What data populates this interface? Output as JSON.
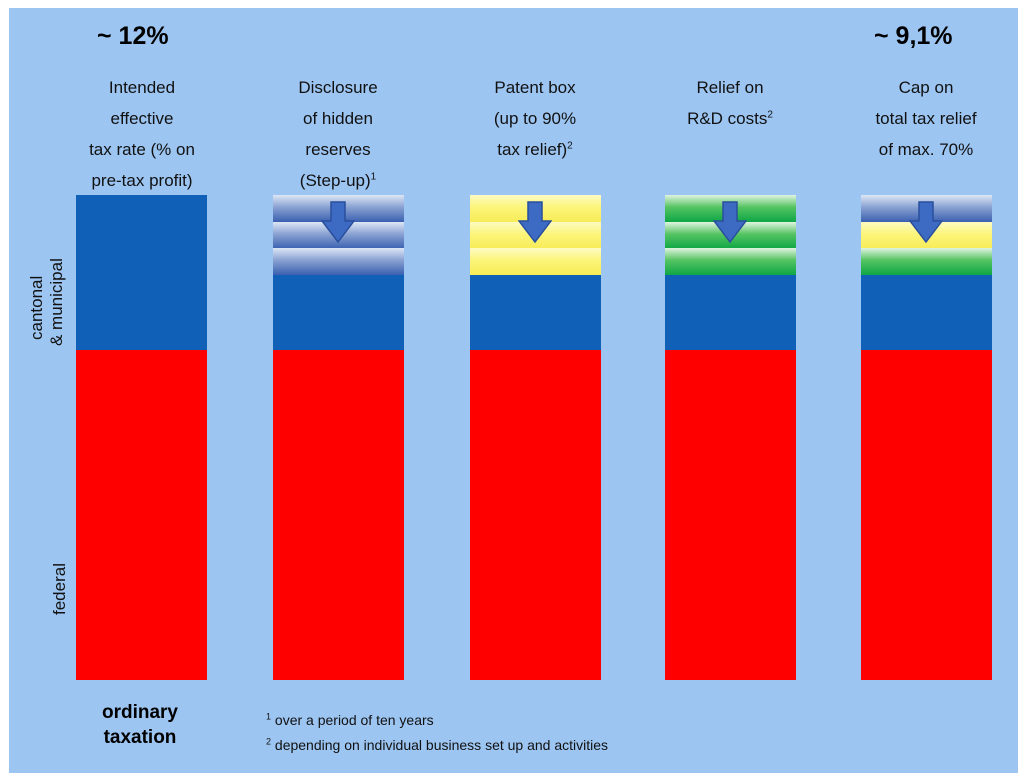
{
  "rates": {
    "left": "~ 12%",
    "right": "~ 9,1%"
  },
  "columns": [
    {
      "lines": [
        "Intended",
        "effective",
        "tax rate (% on",
        "pre-tax profit)"
      ],
      "sup": ""
    },
    {
      "lines": [
        "Disclosure",
        "of hidden",
        "reserves",
        "(Step-up)"
      ],
      "sup": "1"
    },
    {
      "lines": [
        "Patent box",
        "(up to 90%",
        "tax relief)"
      ],
      "sup": "2"
    },
    {
      "lines": [
        "Relief on",
        "R&D costs"
      ],
      "sup": "2"
    },
    {
      "lines": [
        "Cap on",
        "total tax relief",
        "of max. 70%"
      ],
      "sup": ""
    }
  ],
  "axis_labels": {
    "cantonal_1": "cantonal",
    "cantonal_2": "& municipal",
    "federal": "federal"
  },
  "bottom_title": [
    "ordinary",
    "taxation"
  ],
  "footnotes": [
    {
      "mark": "1",
      "text": "over a period of ten years"
    },
    {
      "mark": "2",
      "text": "depending on individual business set up and activities"
    }
  ],
  "colors": {
    "background": "#9cc5f2",
    "federal": "#fe0000",
    "cantonal": "#1060b8",
    "arrow": "#3d6bc4"
  }
}
